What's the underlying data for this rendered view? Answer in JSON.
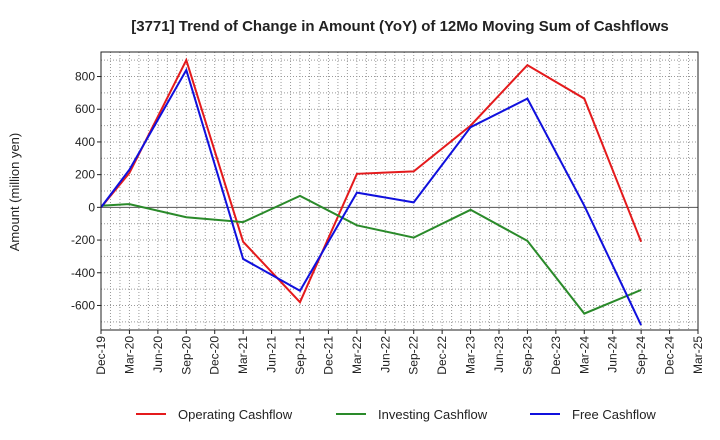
{
  "chart_data": {
    "type": "line",
    "title": "[3771]  Trend of Change in Amount (YoY) of 12Mo Moving Sum of Cashflows",
    "xlabel": "",
    "ylabel": "Amount (million yen)",
    "ylim": [
      -750,
      950
    ],
    "yticks": [
      -600,
      -400,
      -200,
      0,
      200,
      400,
      600,
      800
    ],
    "ytick_labels": [
      "-600",
      "-400",
      "-200",
      "0",
      "200",
      "400",
      "600",
      "800"
    ],
    "categories": [
      "Dec-19",
      "Mar-20",
      "Jun-20",
      "Sep-20",
      "Dec-20",
      "Mar-21",
      "Jun-21",
      "Sep-21",
      "Dec-21",
      "Mar-22",
      "Jun-22",
      "Sep-22",
      "Dec-22",
      "Mar-23",
      "Jun-23",
      "Sep-23",
      "Dec-23",
      "Mar-24",
      "Jun-24",
      "Sep-24",
      "Dec-24",
      "Mar-25"
    ],
    "series": [
      {
        "name": "Operating Cashflow",
        "color": "#e41a1c",
        "values": [
          0,
          210,
          null,
          900,
          null,
          -210,
          null,
          -580,
          null,
          205,
          null,
          220,
          null,
          500,
          null,
          870,
          null,
          665,
          null,
          -210,
          null,
          null
        ]
      },
      {
        "name": "Investing Cashflow",
        "color": "#2a8a2a",
        "values": [
          10,
          20,
          null,
          -60,
          null,
          -90,
          null,
          70,
          null,
          -110,
          null,
          -185,
          null,
          -15,
          null,
          -205,
          null,
          -650,
          null,
          -505,
          null,
          null
        ]
      },
      {
        "name": "Free Cashflow",
        "color": "#1010dd",
        "values": [
          0,
          230,
          null,
          840,
          null,
          -315,
          null,
          -510,
          null,
          90,
          null,
          30,
          null,
          490,
          null,
          665,
          null,
          10,
          null,
          -720,
          null,
          null
        ]
      }
    ],
    "legend_position": "bottom",
    "grid": true
  }
}
